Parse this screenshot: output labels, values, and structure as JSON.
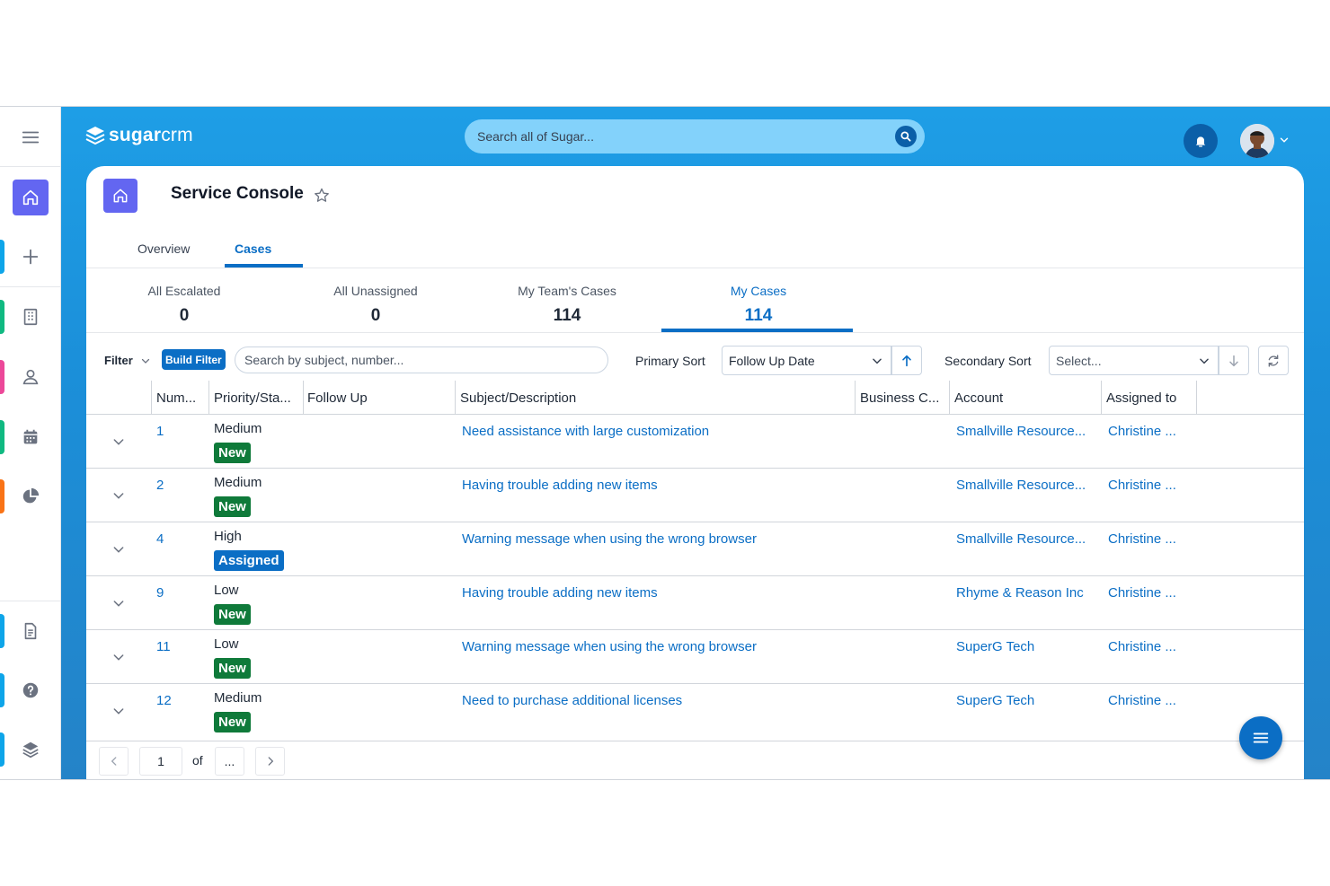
{
  "app": {
    "logo_bold": "sugar",
    "logo_light": "crm"
  },
  "search": {
    "placeholder": "Search all of Sugar..."
  },
  "page": {
    "title": "Service Console"
  },
  "tabs": [
    {
      "label": "Overview"
    },
    {
      "label": "Cases"
    }
  ],
  "stats": [
    {
      "label": "All Escalated",
      "value": "0"
    },
    {
      "label": "All Unassigned",
      "value": "0"
    },
    {
      "label": "My Team's Cases",
      "value": "114"
    },
    {
      "label": "My Cases",
      "value": "114"
    }
  ],
  "filter": {
    "label": "Filter",
    "build_label": "Build Filter",
    "search_placeholder": "Search by subject, number...",
    "primary_sort_label": "Primary Sort",
    "primary_sort_value": "Follow Up Date",
    "secondary_sort_label": "Secondary Sort",
    "secondary_sort_placeholder": "Select..."
  },
  "columns": {
    "number": "Num...",
    "priority": "Priority/Sta...",
    "follow_up": "Follow Up",
    "subject": "Subject/Description",
    "business": "Business C...",
    "account": "Account",
    "assigned": "Assigned to"
  },
  "rows": [
    {
      "number": "1",
      "priority": "Medium",
      "status": "New",
      "subject": "Need assistance with large customization",
      "account": "Smallville Resource...",
      "assigned": "Christine ..."
    },
    {
      "number": "2",
      "priority": "Medium",
      "status": "New",
      "subject": "Having trouble adding new items",
      "account": "Smallville Resource...",
      "assigned": "Christine ..."
    },
    {
      "number": "4",
      "priority": "High",
      "status": "Assigned",
      "subject": "Warning message when using the wrong browser",
      "account": "Smallville Resource...",
      "assigned": "Christine ..."
    },
    {
      "number": "9",
      "priority": "Low",
      "status": "New",
      "subject": "Having trouble adding new items",
      "account": "Rhyme & Reason Inc",
      "assigned": "Christine ..."
    },
    {
      "number": "11",
      "priority": "Low",
      "status": "New",
      "subject": "Warning message when using the wrong browser",
      "account": "SuperG Tech",
      "assigned": "Christine ..."
    },
    {
      "number": "12",
      "priority": "Medium",
      "status": "New",
      "subject": "Need to purchase additional licenses",
      "account": "SuperG Tech",
      "assigned": "Christine ..."
    }
  ],
  "pagination": {
    "current": "1",
    "of": "of",
    "total": "..."
  },
  "colors": {
    "accent": "#0b6ec5",
    "status_new": "#0f7a3a",
    "status_assigned": "#0b6ec5",
    "home_tile": "#6366f1"
  },
  "icons": [
    "menu-icon",
    "home-icon",
    "plus-icon",
    "building-icon",
    "person-icon",
    "calendar-icon",
    "pie-chart-icon",
    "document-icon",
    "help-icon",
    "layers-icon",
    "search-icon",
    "bell-icon",
    "star-icon",
    "chevron-down-icon",
    "arrow-up-icon",
    "arrow-down-icon",
    "refresh-icon",
    "chevron-left-icon",
    "chevron-right-icon"
  ]
}
